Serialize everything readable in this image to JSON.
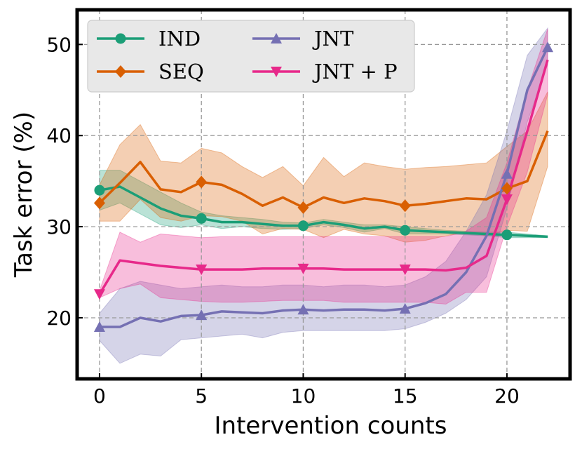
{
  "chart_data": {
    "type": "line",
    "title": "",
    "xlabel": "Intervention counts",
    "ylabel": "Task error (%)",
    "xlim": [
      -1.1,
      23.1
    ],
    "ylim": [
      13.3,
      53.8
    ],
    "xticks": [
      0,
      5,
      10,
      15,
      20
    ],
    "yticks": [
      20,
      30,
      40,
      50
    ],
    "grid": true,
    "legend_position": "top-left",
    "series": [
      {
        "name": "IND",
        "color": "#1b9e77",
        "marker": "circle",
        "x": [
          0,
          1,
          2,
          3,
          4,
          5,
          6,
          7,
          8,
          9,
          10,
          11,
          12,
          13,
          14,
          15,
          16,
          17,
          18,
          19,
          20,
          21,
          22
        ],
        "values": [
          34.0,
          34.4,
          33.2,
          32.0,
          31.2,
          30.9,
          30.5,
          30.5,
          30.3,
          30.1,
          30.1,
          30.5,
          30.2,
          29.8,
          30.0,
          29.6,
          29.5,
          29.4,
          29.3,
          29.2,
          29.1,
          29.0,
          28.9
        ],
        "upper": [
          36.2,
          36.2,
          35.0,
          33.8,
          32.6,
          31.6,
          31.2,
          31.0,
          30.8,
          30.5,
          30.4,
          30.8,
          30.5,
          30.2,
          30.2,
          30.0,
          29.8,
          29.6,
          29.5,
          29.4,
          29.4,
          29.2,
          29.0
        ],
        "lower": [
          31.8,
          32.6,
          31.4,
          30.2,
          29.9,
          30.2,
          29.8,
          30.0,
          29.8,
          29.7,
          29.8,
          30.2,
          29.9,
          29.4,
          29.8,
          29.2,
          29.2,
          29.2,
          29.1,
          29.0,
          28.8,
          28.8,
          28.8
        ],
        "marker_x": [
          0,
          5,
          10,
          15,
          20
        ]
      },
      {
        "name": "SEQ",
        "color": "#d95f02",
        "marker": "diamond",
        "x": [
          0,
          1,
          2,
          3,
          4,
          5,
          6,
          7,
          8,
          9,
          10,
          11,
          12,
          13,
          14,
          15,
          16,
          17,
          18,
          19,
          20,
          21,
          22
        ],
        "values": [
          32.6,
          34.8,
          37.1,
          34.1,
          33.8,
          34.9,
          34.6,
          33.6,
          32.3,
          33.2,
          32.1,
          33.2,
          32.6,
          33.1,
          32.8,
          32.3,
          32.5,
          32.8,
          33.1,
          33.0,
          34.2,
          35.0,
          40.5
        ],
        "upper": [
          34.6,
          39.0,
          41.2,
          37.2,
          37.0,
          38.6,
          38.1,
          36.6,
          35.4,
          36.6,
          34.5,
          37.6,
          35.5,
          37.0,
          36.6,
          36.3,
          36.5,
          36.6,
          36.8,
          37.0,
          38.8,
          40.5,
          44.8
        ],
        "lower": [
          30.6,
          30.6,
          33.0,
          31.0,
          30.6,
          31.2,
          31.1,
          30.6,
          29.2,
          29.8,
          29.7,
          28.8,
          29.7,
          29.2,
          29.0,
          28.3,
          28.5,
          29.0,
          29.4,
          29.0,
          29.6,
          29.5,
          36.6
        ],
        "marker_x": [
          0,
          5,
          10,
          15,
          20
        ]
      },
      {
        "name": "JNT",
        "color": "#7570b3",
        "marker": "triangle-up",
        "x": [
          0,
          1,
          2,
          3,
          4,
          5,
          6,
          7,
          8,
          9,
          10,
          11,
          12,
          13,
          14,
          15,
          16,
          17,
          18,
          19,
          20,
          21,
          22
        ],
        "values": [
          19.0,
          19.0,
          20.0,
          19.6,
          20.2,
          20.3,
          20.7,
          20.6,
          20.5,
          20.8,
          20.9,
          20.8,
          20.9,
          20.9,
          20.8,
          21.0,
          21.6,
          22.6,
          25.0,
          29.0,
          35.8,
          45.0,
          49.7
        ],
        "upper": [
          20.5,
          23.2,
          24.0,
          23.6,
          23.2,
          23.4,
          23.6,
          23.4,
          23.4,
          23.6,
          23.6,
          23.4,
          23.6,
          23.6,
          23.4,
          23.6,
          24.5,
          26.2,
          29.5,
          33.5,
          40.5,
          48.8,
          51.8
        ],
        "lower": [
          17.5,
          15.0,
          16.0,
          15.8,
          17.6,
          17.8,
          18.0,
          18.2,
          17.8,
          18.4,
          18.6,
          18.6,
          18.6,
          18.6,
          18.6,
          18.8,
          19.5,
          20.5,
          22.0,
          24.5,
          32.0,
          41.5,
          47.8
        ],
        "marker_x": [
          0,
          5,
          10,
          15,
          20,
          22
        ]
      },
      {
        "name": "JNT + P",
        "color": "#e7298a",
        "marker": "triangle-down",
        "x": [
          0,
          1,
          2,
          3,
          4,
          5,
          6,
          7,
          8,
          9,
          10,
          11,
          12,
          13,
          14,
          15,
          16,
          17,
          18,
          19,
          20,
          21,
          22
        ],
        "values": [
          22.6,
          26.3,
          26.0,
          25.7,
          25.5,
          25.3,
          25.3,
          25.3,
          25.4,
          25.4,
          25.4,
          25.4,
          25.3,
          25.3,
          25.3,
          25.3,
          25.3,
          25.2,
          25.5,
          26.8,
          33.0,
          40.5,
          48.3
        ],
        "upper": [
          23.0,
          29.4,
          28.3,
          29.2,
          29.0,
          28.8,
          28.9,
          28.9,
          28.9,
          28.9,
          28.9,
          28.9,
          28.9,
          28.9,
          28.9,
          28.9,
          28.9,
          28.9,
          29.5,
          31.0,
          37.0,
          45.0,
          51.7
        ],
        "lower": [
          22.2,
          23.2,
          23.7,
          22.2,
          22.0,
          21.8,
          21.7,
          21.7,
          21.8,
          21.9,
          21.9,
          21.9,
          21.7,
          21.7,
          21.7,
          21.7,
          21.7,
          21.5,
          22.8,
          22.8,
          30.0,
          36.0,
          44.5
        ],
        "marker_x": [
          0,
          5,
          10,
          15,
          20
        ]
      }
    ]
  }
}
